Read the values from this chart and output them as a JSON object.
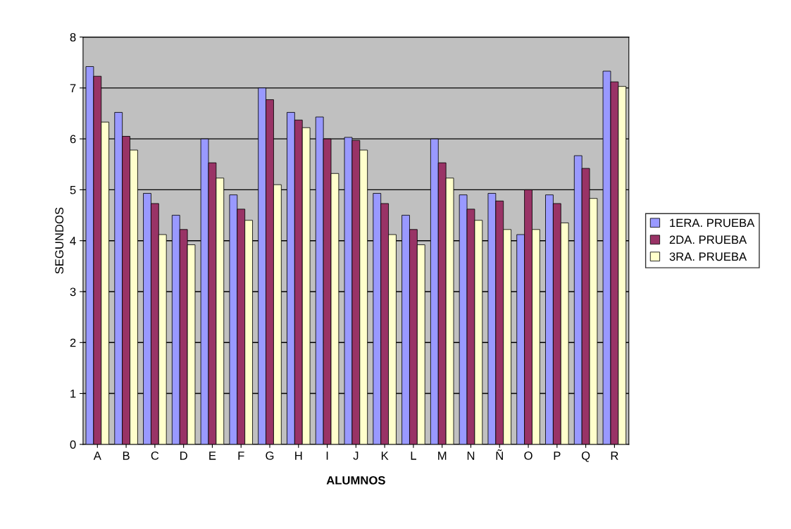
{
  "chart_data": {
    "type": "bar",
    "xlabel": "ALUMNOS",
    "ylabel": "SEGUNDOS",
    "categories": [
      "A",
      "B",
      "C",
      "D",
      "E",
      "F",
      "G",
      "H",
      "I",
      "J",
      "K",
      "L",
      "M",
      "N",
      "Ñ",
      "O",
      "P",
      "Q",
      "R"
    ],
    "series": [
      {
        "name": "1ERA. PRUEBA",
        "color": "#9999ff",
        "values": [
          7.42,
          6.52,
          4.93,
          4.5,
          6.0,
          4.9,
          7.0,
          6.52,
          6.43,
          6.03,
          4.93,
          4.5,
          6.0,
          4.9,
          4.93,
          4.12,
          4.9,
          5.67,
          7.33
        ]
      },
      {
        "name": "2DA. PRUEBA",
        "color": "#993366",
        "values": [
          7.23,
          6.05,
          4.73,
          4.22,
          5.53,
          4.62,
          6.77,
          6.37,
          6.0,
          5.97,
          4.73,
          4.22,
          5.53,
          4.62,
          4.78,
          5.0,
          4.73,
          5.42,
          7.12
        ]
      },
      {
        "name": "3RA. PRUEBA",
        "color": "#ffffcc",
        "values": [
          6.33,
          5.78,
          4.12,
          3.92,
          5.23,
          4.4,
          5.1,
          6.22,
          5.32,
          5.78,
          4.12,
          3.92,
          5.23,
          4.4,
          4.22,
          4.22,
          4.35,
          4.83,
          7.03
        ]
      }
    ],
    "ylim": [
      0,
      8
    ],
    "yticks": [
      0,
      1,
      2,
      3,
      4,
      5,
      6,
      7,
      8
    ],
    "grid": "y",
    "legend": "right"
  }
}
